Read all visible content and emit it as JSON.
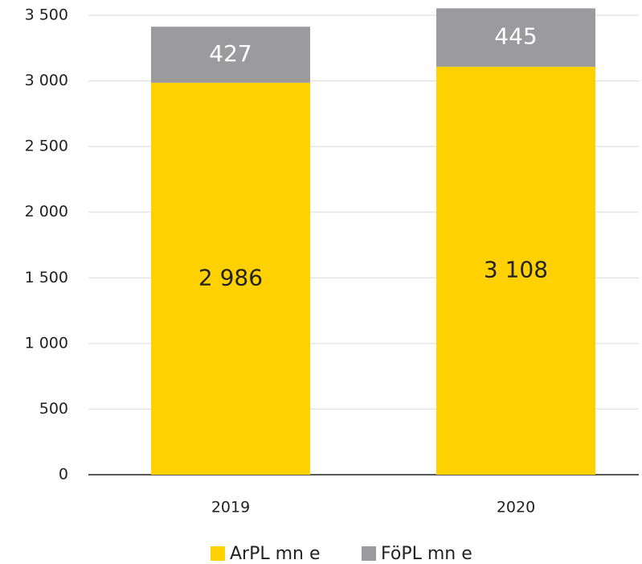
{
  "chart_data": {
    "type": "stacked_bar",
    "categories": [
      "2019",
      "2020"
    ],
    "series": [
      {
        "name": "ArPL mn e",
        "color": "#FFD100",
        "values": [
          2986,
          3108
        ],
        "value_labels": [
          "2 986",
          "3 108"
        ]
      },
      {
        "name": "FöPL mn e",
        "color": "#9B9B9E",
        "values": [
          427,
          445
        ],
        "value_labels": [
          "427",
          "445"
        ]
      }
    ],
    "ylim": [
      0,
      3500
    ],
    "yticks": [
      0,
      500,
      {
        "value": 1000,
        "label": "1 000"
      },
      {
        "value": 1500,
        "label": "1 500"
      },
      {
        "value": 2000,
        "label": "2 000"
      },
      {
        "value": 2500,
        "label": "2 500"
      },
      {
        "value": 3000,
        "label": "3 000"
      },
      {
        "value": 3500,
        "label": "3 500"
      }
    ],
    "grid": true,
    "legend": "bottom"
  }
}
